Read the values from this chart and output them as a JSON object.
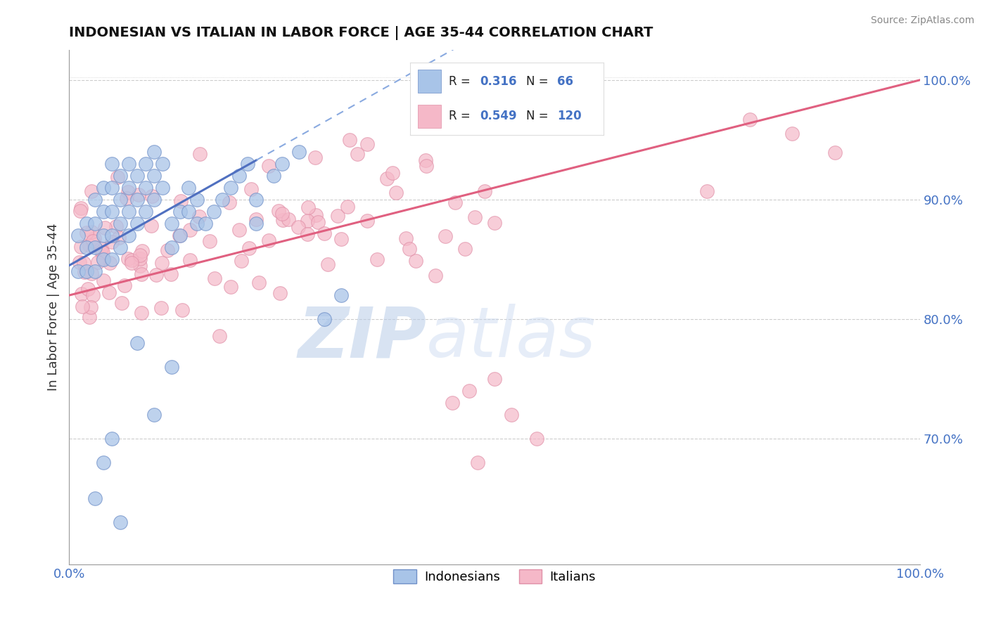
{
  "title": "INDONESIAN VS ITALIAN IN LABOR FORCE | AGE 35-44 CORRELATION CHART",
  "source": "Source: ZipAtlas.com",
  "ylabel": "In Labor Force | Age 35-44",
  "xmin": 0.0,
  "xmax": 1.0,
  "ymin": 0.595,
  "ymax": 1.025,
  "ytick_labels": [
    "70.0%",
    "80.0%",
    "90.0%",
    "100.0%"
  ],
  "ytick_values": [
    0.7,
    0.8,
    0.9,
    1.0
  ],
  "R_indonesian": 0.316,
  "N_indonesian": 66,
  "R_italian": 0.549,
  "N_italian": 120,
  "color_indonesian": "#a8c4e8",
  "color_italian": "#f5b8c8",
  "line_indonesian": "#5070c0",
  "line_italian": "#e06080",
  "watermark_zip": "ZIP",
  "watermark_atlas": "atlas",
  "watermark_color_zip": "#b8cce8",
  "watermark_color_atlas": "#b8cce8",
  "legend_label_indonesian": "Indonesians",
  "legend_label_italian": "Italians"
}
